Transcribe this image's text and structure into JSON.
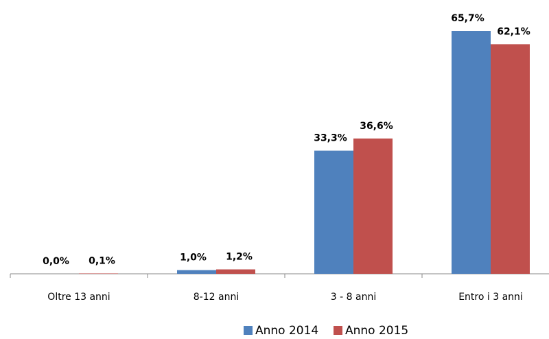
{
  "chart_data": {
    "type": "bar",
    "categories": [
      "Oltre 13 anni",
      "8-12 anni",
      "3 - 8 anni",
      "Entro i 3 anni"
    ],
    "series": [
      {
        "name": "Anno 2014",
        "color": "#4f81bd",
        "values": [
          0.0,
          1.0,
          33.3,
          65.7
        ],
        "value_labels": [
          "0,0%",
          "1,0%",
          "33,3%",
          "65,7%"
        ]
      },
      {
        "name": "Anno 2015",
        "color": "#c0504d",
        "values": [
          0.1,
          1.2,
          36.6,
          62.1
        ],
        "value_labels": [
          "0,1%",
          "1,2%",
          "36,6%",
          "62,1%"
        ]
      }
    ]
  }
}
